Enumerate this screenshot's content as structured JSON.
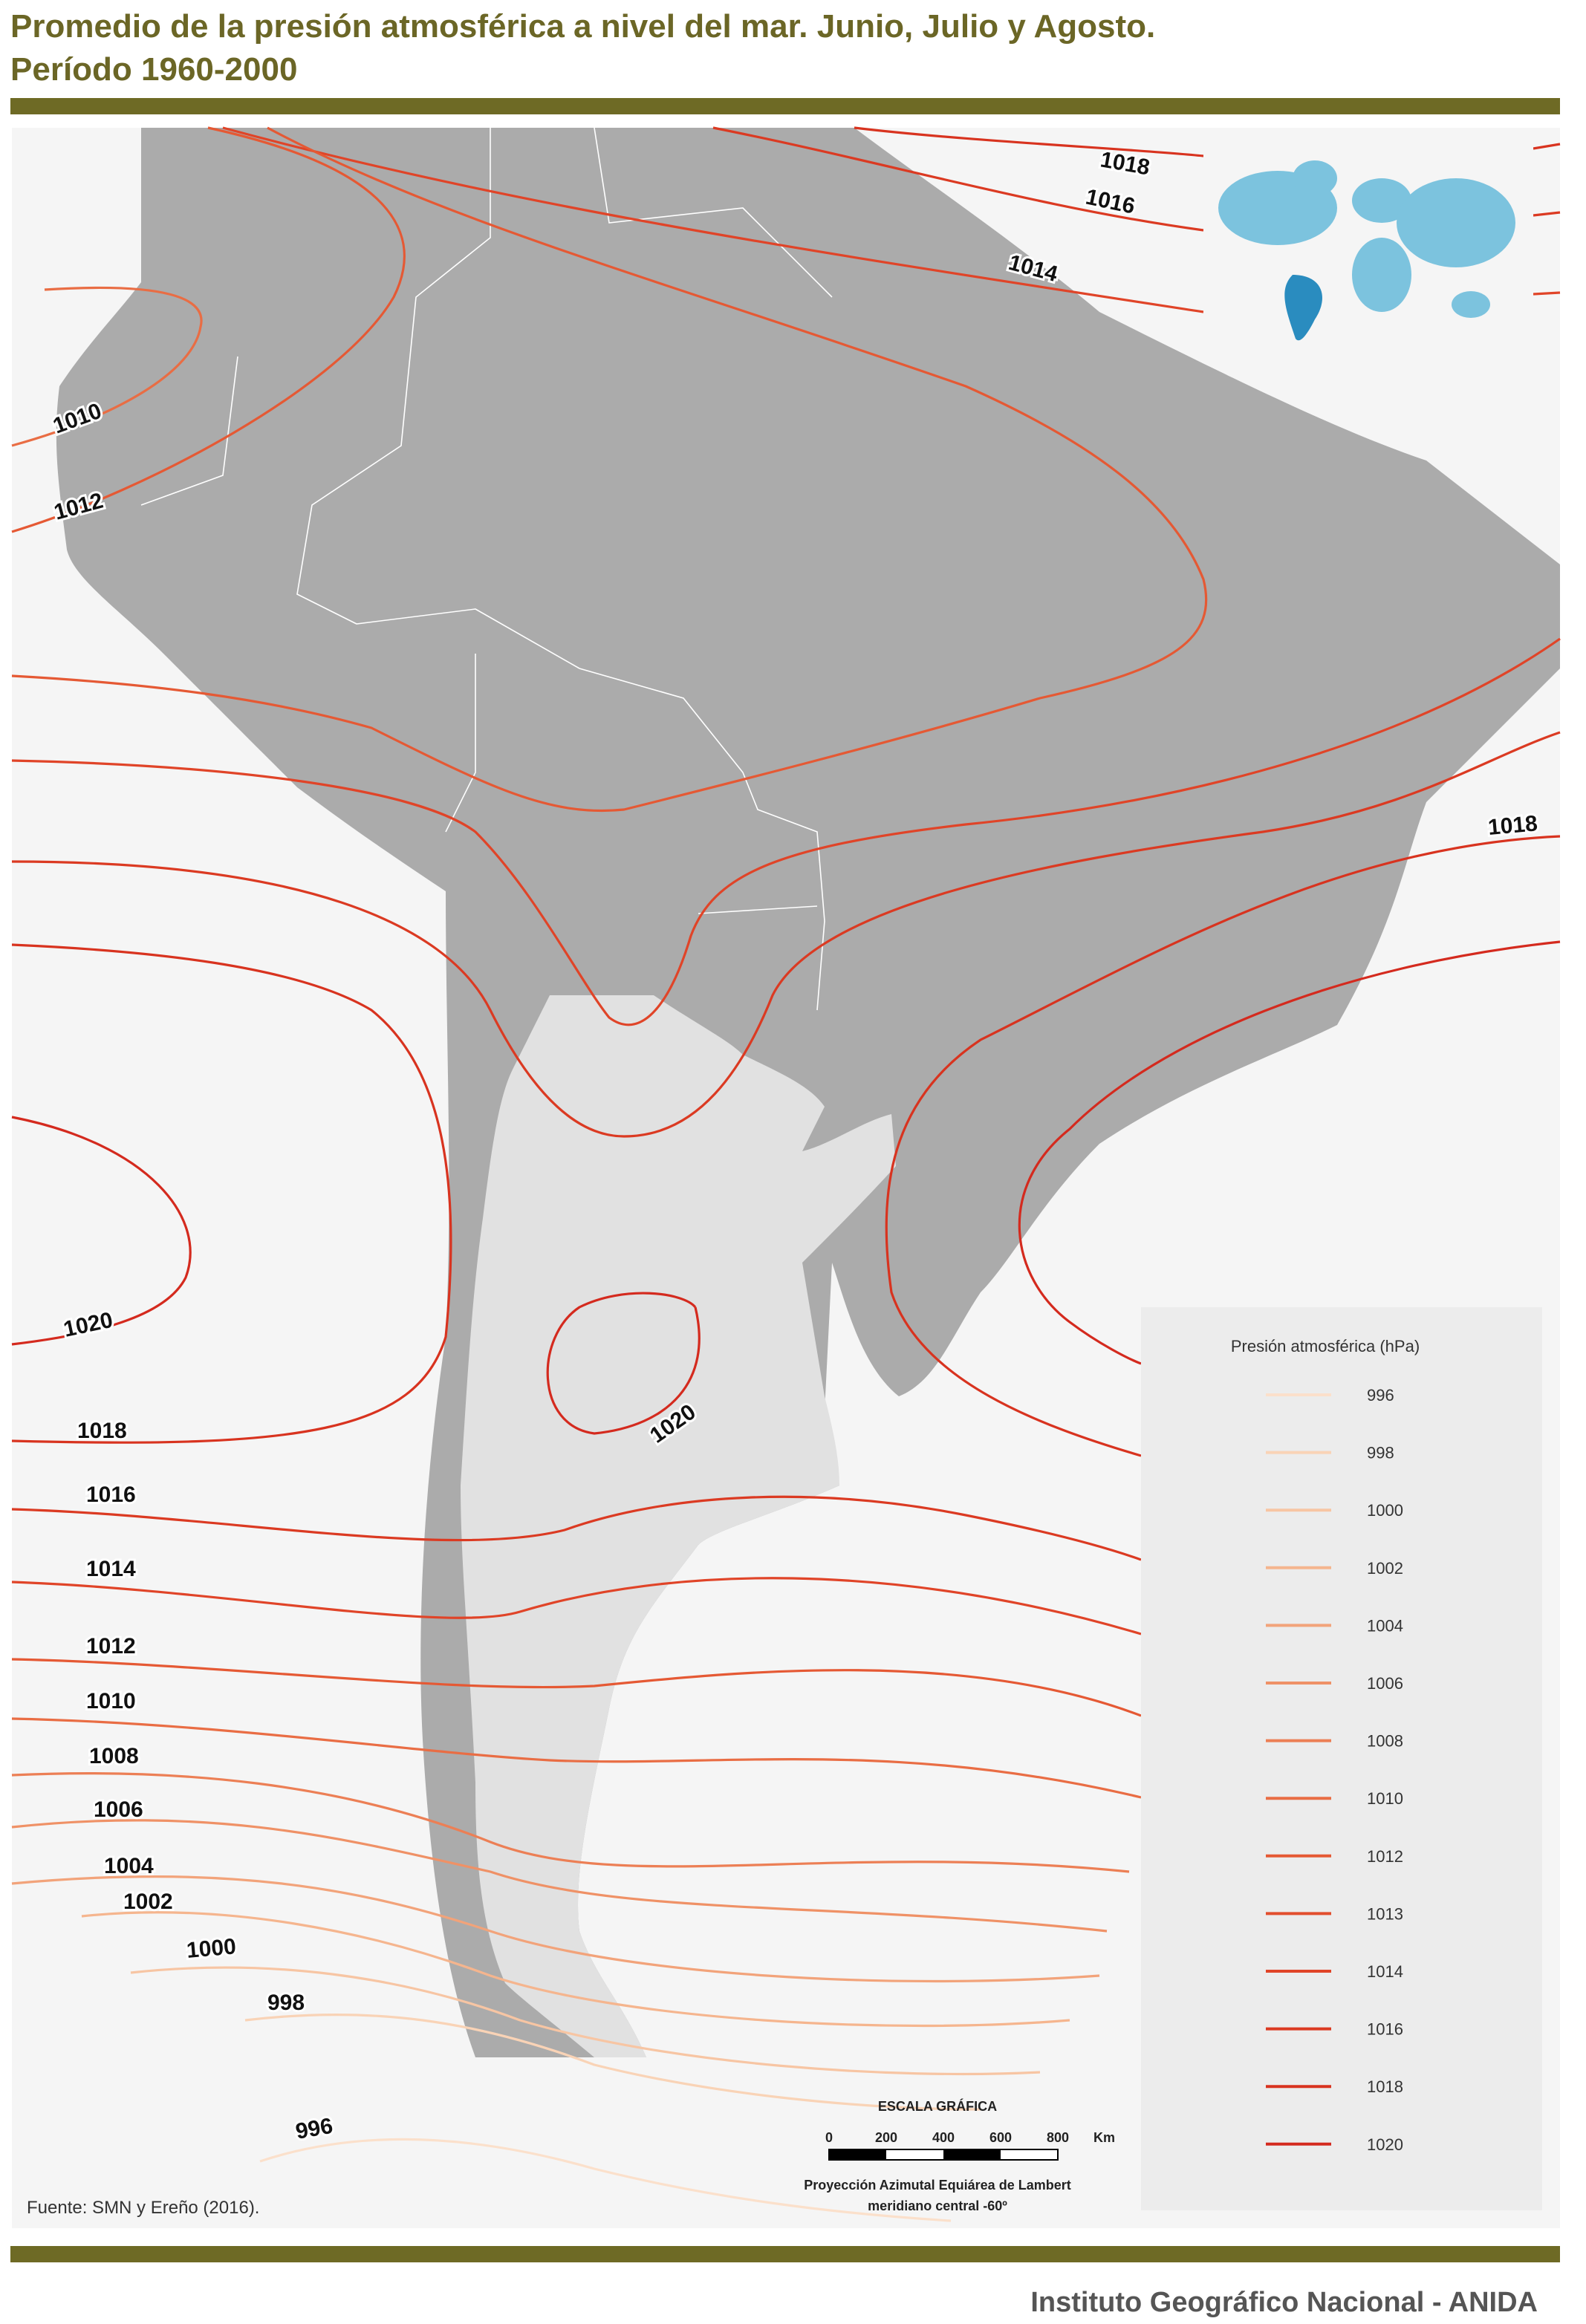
{
  "header": {
    "title_lines": [
      "Promedio de la presión atmosférica a nivel del mar. Junio, Julio y Agosto.",
      "Período 1960-2000"
    ]
  },
  "map": {
    "contour_labels": [
      "1018",
      "1016",
      "1014",
      "1010",
      "1012",
      "1018",
      "1020",
      "1020",
      "1018",
      "1016",
      "1014",
      "1012",
      "1010",
      "1008",
      "1006",
      "1004",
      "1002",
      "1000",
      "998",
      "996"
    ]
  },
  "legend": {
    "title": "Presión atmosférica (hPa)",
    "items": [
      {
        "label": "996",
        "color": "#fbe0cb"
      },
      {
        "label": "998",
        "color": "#f9d3b6"
      },
      {
        "label": "1000",
        "color": "#f7c5a3"
      },
      {
        "label": "1002",
        "color": "#f5b58e"
      },
      {
        "label": "1004",
        "color": "#f2a37a"
      },
      {
        "label": "1006",
        "color": "#ef9166"
      },
      {
        "label": "1008",
        "color": "#ec7f55"
      },
      {
        "label": "1010",
        "color": "#e96d44"
      },
      {
        "label": "1012",
        "color": "#e55934"
      },
      {
        "label": "1013",
        "color": "#e24e2e"
      },
      {
        "label": "1014",
        "color": "#e04428"
      },
      {
        "label": "1016",
        "color": "#db3a22"
      },
      {
        "label": "1018",
        "color": "#d8331f"
      },
      {
        "label": "1020",
        "color": "#d42a1e"
      }
    ]
  },
  "scale": {
    "title": "ESCALA GRÁFICA",
    "ticks": [
      "0",
      "200",
      "400",
      "600",
      "800"
    ],
    "unit": "Km",
    "projection_lines": [
      "Proyección Azimutal Equiárea de Lambert",
      "meridiano central -60º"
    ]
  },
  "source": "Fuente: SMN y Ereño (2016).",
  "footer": "Instituto Geográfico Nacional - ANIDA"
}
